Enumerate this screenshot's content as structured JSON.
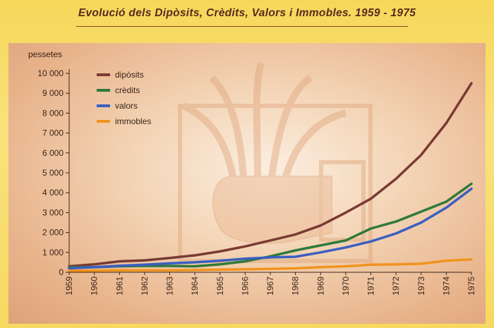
{
  "title": "Evolució dels Dipòsits, Crèdits, Valors i Immobles. 1959 - 1975",
  "chart_data": {
    "type": "line",
    "title": "Evolució dels Dipòsits, Crèdits, Valors i Immobles. 1959 - 1975",
    "ylabel": "pessetes",
    "xlabel": "",
    "ylim": [
      0,
      10000
    ],
    "yticks": [
      0,
      1000,
      2000,
      3000,
      4000,
      5000,
      6000,
      7000,
      8000,
      9000,
      10000
    ],
    "ytick_labels": [
      "0",
      "1 000",
      "2 000",
      "3 000",
      "4 000",
      "5 000",
      "6 000",
      "7 000",
      "8 000",
      "9 000",
      "10 000"
    ],
    "x": [
      "1959",
      "1960",
      "1961",
      "1962",
      "1963",
      "1964",
      "1965",
      "1966",
      "1967",
      "1968",
      "1969",
      "1970",
      "1971",
      "1972",
      "1973",
      "1974",
      "1975"
    ],
    "legend_position": "top-left",
    "grid": false,
    "series": [
      {
        "name": "dipòsits",
        "color": "#7a3a34",
        "values": [
          300,
          400,
          550,
          600,
          720,
          850,
          1050,
          1300,
          1600,
          1900,
          2350,
          3000,
          3700,
          4700,
          5900,
          7500,
          9500
        ]
      },
      {
        "name": "crèdits",
        "color": "#2f7a3a",
        "values": [
          250,
          250,
          300,
          320,
          320,
          300,
          400,
          550,
          800,
          1100,
          1350,
          1600,
          2200,
          2550,
          3050,
          3550,
          4450
        ]
      },
      {
        "name": "valors",
        "color": "#3a5fc0",
        "values": [
          200,
          260,
          330,
          380,
          450,
          500,
          580,
          680,
          750,
          780,
          1000,
          1250,
          1550,
          1950,
          2500,
          3250,
          4200
        ]
      },
      {
        "name": "immobles",
        "color": "#f0941e",
        "values": [
          80,
          80,
          100,
          100,
          100,
          110,
          130,
          150,
          170,
          200,
          260,
          300,
          380,
          400,
          430,
          580,
          650
        ]
      }
    ]
  }
}
